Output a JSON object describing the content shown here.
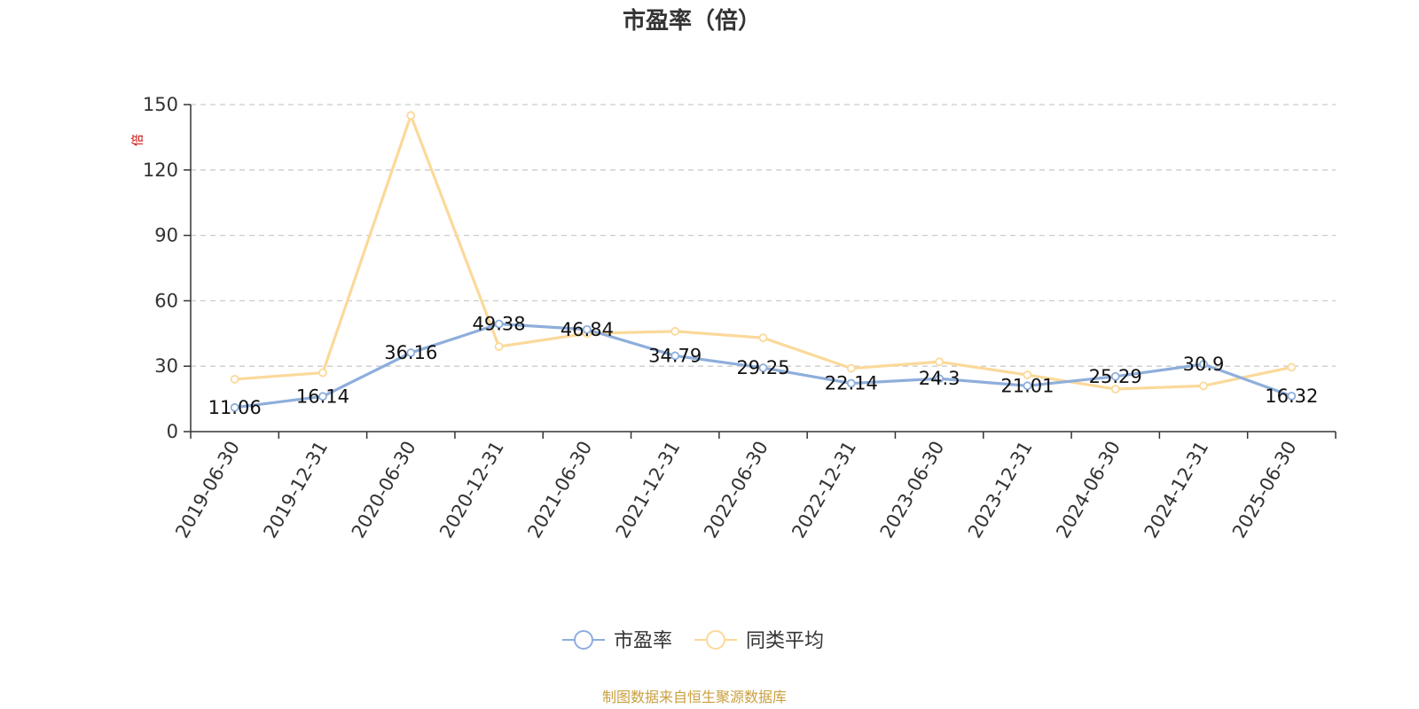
{
  "chart_data": {
    "type": "line",
    "title": "市盈率（倍）",
    "ylabel": "倍",
    "ylim": [
      0,
      150
    ],
    "yticks": [
      0,
      30,
      60,
      90,
      120,
      150
    ],
    "categories": [
      "2019-06-30",
      "2019-12-31",
      "2020-06-30",
      "2020-12-31",
      "2021-06-30",
      "2021-12-31",
      "2022-06-30",
      "2022-12-31",
      "2023-06-30",
      "2023-12-31",
      "2024-06-30",
      "2024-12-31",
      "2025-06-30"
    ],
    "series": [
      {
        "name": "市盈率",
        "color": "#8eaedb",
        "values": [
          11.06,
          16.14,
          36.16,
          49.38,
          46.84,
          34.79,
          29.25,
          22.14,
          24.3,
          21.01,
          25.29,
          30.9,
          16.32
        ],
        "labels": [
          "11.06",
          "16.14",
          "36.16",
          "49.38",
          "46.84",
          "34.79",
          "29.25",
          "22.14",
          "24.3",
          "21.01",
          "25.29",
          "30.9",
          "16.32"
        ]
      },
      {
        "name": "同类平均",
        "color": "#fbd99a",
        "values": [
          24,
          27,
          145,
          39,
          45,
          46,
          43,
          29,
          32,
          26,
          19.5,
          21,
          29.5
        ]
      }
    ],
    "grid": true,
    "legend_position": "bottom-center",
    "axis_unit_color": "#cc0000"
  },
  "footer": {
    "source_text": "制图数据来自恒生聚源数据库",
    "source_color": "#c9a040"
  }
}
